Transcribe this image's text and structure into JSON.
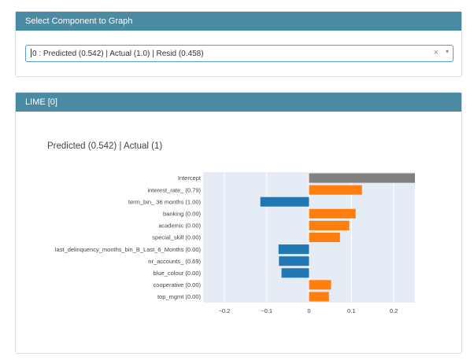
{
  "select_card": {
    "header": "Select Component to Graph",
    "selected_value": "0 : Predicted (0.542) | Actual (1.0) | Resid (0.458)",
    "clear_glyph": "×",
    "dropdown_glyph": "▾"
  },
  "lime_card": {
    "header": "LIME [0]"
  },
  "chart_data": {
    "type": "bar",
    "orientation": "horizontal",
    "title": "Predicted (0.542) | Actual (1)",
    "categories": [
      "Intercept",
      "interest_rate_ (0.79)",
      "term_bin_ 36 months (1.00)",
      "banking (0.00)",
      "academic (0.00)",
      "special_skill (0.00)",
      "last_delinquency_months_bin_B_Last_6_Months (0.00)",
      "nr_accounts_ (0.69)",
      "blue_colour (0.00)",
      "cooperative (0.00)",
      "top_mgmt (0.00)"
    ],
    "values": [
      0.25,
      0.125,
      -0.115,
      0.11,
      0.095,
      0.073,
      -0.072,
      -0.071,
      -0.065,
      0.052,
      0.047
    ],
    "xlim": [
      -0.25,
      0.25
    ],
    "xticks": [
      -0.2,
      -0.1,
      0,
      0.1,
      0.2
    ],
    "xtick_labels": [
      "−0.2",
      "−0.1",
      "0",
      "0.1",
      "0.2"
    ],
    "grid": true,
    "colors": {
      "intercept": "#808080",
      "positive": "#ff7f0e",
      "negative": "#1f77b4",
      "plot_bg": "#e5ecf6"
    }
  }
}
